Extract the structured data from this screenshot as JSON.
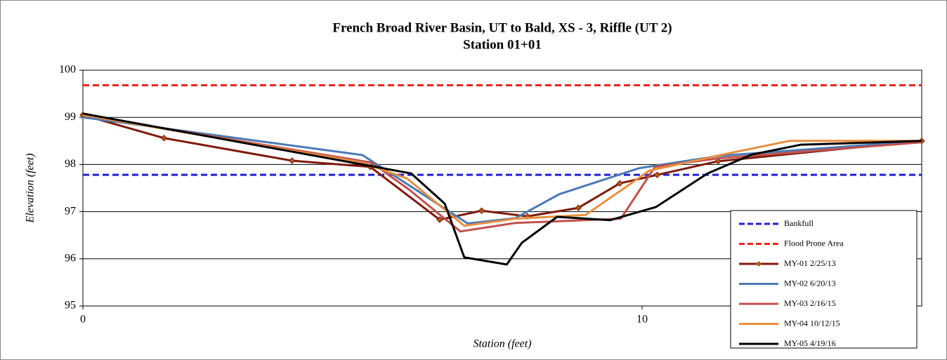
{
  "chart_data": {
    "type": "line",
    "title": [
      "French Broad River Basin, UT to Bald, XS - 3, Riffle (UT 2)",
      "Station 01+01"
    ],
    "x_label": "Station (feet)",
    "y_label": "Elevation (feet)",
    "xlim": [
      0,
      15
    ],
    "xticks": [
      0,
      10
    ],
    "ylim": [
      95,
      100
    ],
    "yticks": [
      95,
      96,
      97,
      98,
      99,
      100
    ],
    "grid": true,
    "legend": "lower right",
    "reference_lines": [
      {
        "name": "Bankfull",
        "color": "#1f1fd6",
        "value": 97.78
      },
      {
        "name": "Flood Prone Area",
        "color": "#e8251f",
        "value": 99.68
      }
    ],
    "series": [
      {
        "name": "MY-01 2/25/13",
        "color": "#7f1a0a",
        "marker": "diamond",
        "x": [
          0,
          1.45,
          3.74,
          5.14,
          6.38,
          7.13,
          7.95,
          8.86,
          9.6,
          10.27,
          11.36,
          15
        ],
        "values": [
          99.05,
          98.56,
          98.08,
          97.95,
          96.83,
          97.02,
          96.9,
          97.08,
          97.6,
          97.78,
          98.07,
          98.5
        ]
      },
      {
        "name": "MY-02 6/20/13",
        "color": "#4a7ab5",
        "x": [
          0,
          5,
          5.39,
          6.88,
          7.73,
          8.52,
          9.94,
          11.36,
          15
        ],
        "values": [
          99.0,
          98.2,
          97.9,
          96.75,
          96.86,
          97.37,
          97.92,
          98.18,
          98.5
        ]
      },
      {
        "name": "MY-03 2/16/15",
        "color": "#c0504d",
        "x": [
          0,
          5.16,
          5.83,
          6.75,
          7.73,
          9.62,
          10.23,
          11.36,
          15
        ],
        "values": [
          99.05,
          98.04,
          97.47,
          96.58,
          96.76,
          96.85,
          97.95,
          98.13,
          98.47
        ]
      },
      {
        "name": "MY-04 10/12/15",
        "color": "#e98e3d",
        "x": [
          0,
          5,
          5.8,
          6.82,
          7.73,
          8.99,
          10.13,
          11.52,
          12.63,
          15
        ],
        "values": [
          99.05,
          98.04,
          97.7,
          96.7,
          96.85,
          96.93,
          97.87,
          98.23,
          98.5,
          98.5
        ]
      },
      {
        "name": "MY-05 4/19/16",
        "color": "#000000",
        "x": [
          0,
          5,
          5.87,
          6.47,
          6.82,
          7.58,
          7.85,
          8.48,
          9.43,
          10.25,
          11.17,
          11.96,
          12.84,
          15
        ],
        "values": [
          99.08,
          98.0,
          97.81,
          97.17,
          96.03,
          95.88,
          96.34,
          96.89,
          96.82,
          97.1,
          97.81,
          98.21,
          98.42,
          98.5
        ]
      }
    ]
  }
}
